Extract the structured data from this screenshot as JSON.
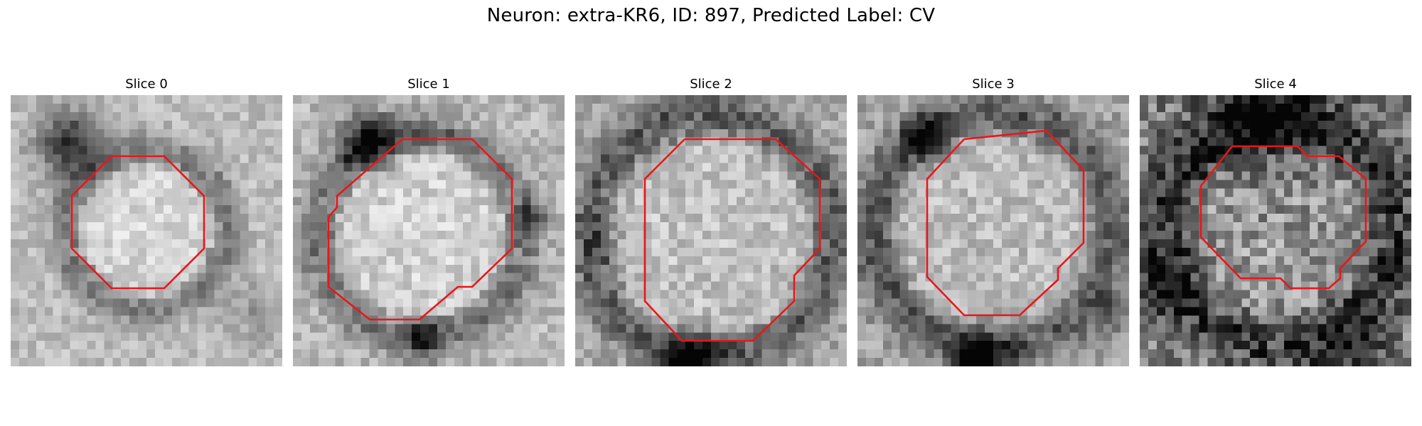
{
  "figure": {
    "title": "Neuron: extra-KR6, ID: 897, Predicted Label: CV"
  },
  "panels": [
    {
      "title": "Slice 0",
      "seed": 11,
      "contrast": 0.85,
      "noise": 0.1,
      "base": 0.74
    },
    {
      "title": "Slice 1",
      "seed": 23,
      "contrast": 0.9,
      "noise": 0.12,
      "base": 0.72
    },
    {
      "title": "Slice 2",
      "seed": 37,
      "contrast": 1.0,
      "noise": 0.13,
      "base": 0.66
    },
    {
      "title": "Slice 3",
      "seed": 51,
      "contrast": 0.95,
      "noise": 0.13,
      "base": 0.64
    },
    {
      "title": "Slice 4",
      "seed": 67,
      "contrast": 0.9,
      "noise": 0.22,
      "base": 0.5
    }
  ],
  "style": {
    "contour_color": "#e8161b",
    "colormap": "gray"
  }
}
